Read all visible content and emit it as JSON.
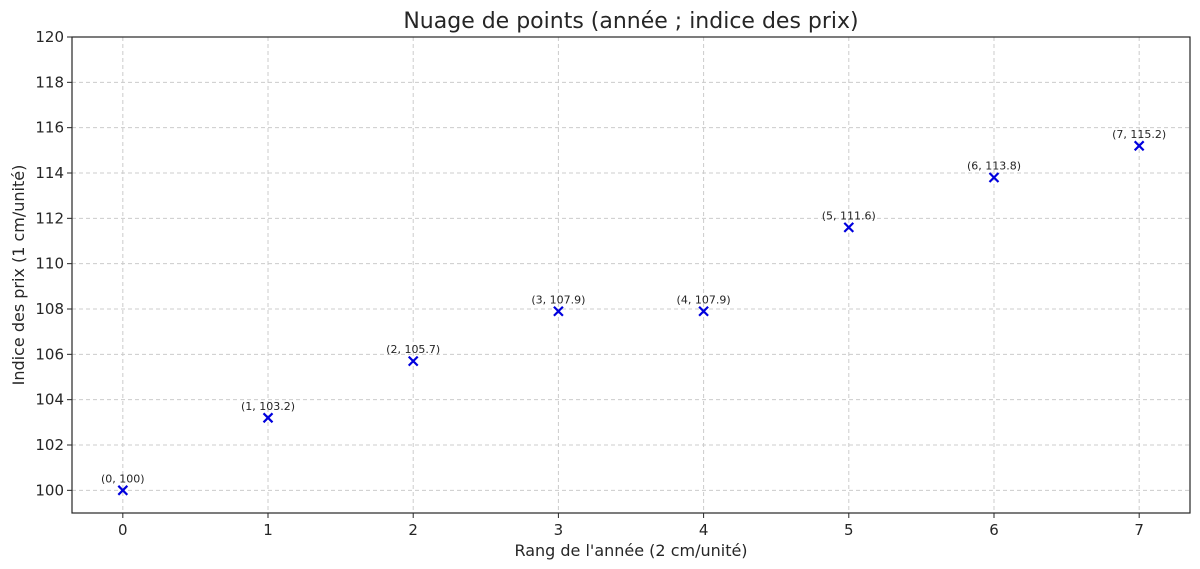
{
  "chart_data": {
    "type": "scatter",
    "title": "Nuage de points (année ; indice des prix)",
    "xlabel": "Rang de l'année (2 cm/unité)",
    "ylabel": "Indice des prix (1 cm/unité)",
    "xlim": [
      -0.35,
      7.35
    ],
    "ylim": [
      99,
      120
    ],
    "xticks": [
      0,
      1,
      2,
      3,
      4,
      5,
      6,
      7
    ],
    "yticks": [
      100,
      102,
      104,
      106,
      108,
      110,
      112,
      114,
      116,
      118,
      120
    ],
    "grid": true,
    "marker": "x",
    "color": "#0000dd",
    "points": [
      {
        "x": 0,
        "y": 100,
        "label": "(0, 100)"
      },
      {
        "x": 1,
        "y": 103.2,
        "label": "(1, 103.2)"
      },
      {
        "x": 2,
        "y": 105.7,
        "label": "(2, 105.7)"
      },
      {
        "x": 3,
        "y": 107.9,
        "label": "(3, 107.9)"
      },
      {
        "x": 4,
        "y": 107.9,
        "label": "(4, 107.9)"
      },
      {
        "x": 5,
        "y": 111.6,
        "label": "(5, 111.6)"
      },
      {
        "x": 6,
        "y": 113.8,
        "label": "(6, 113.8)"
      },
      {
        "x": 7,
        "y": 115.2,
        "label": "(7, 115.2)"
      }
    ]
  }
}
